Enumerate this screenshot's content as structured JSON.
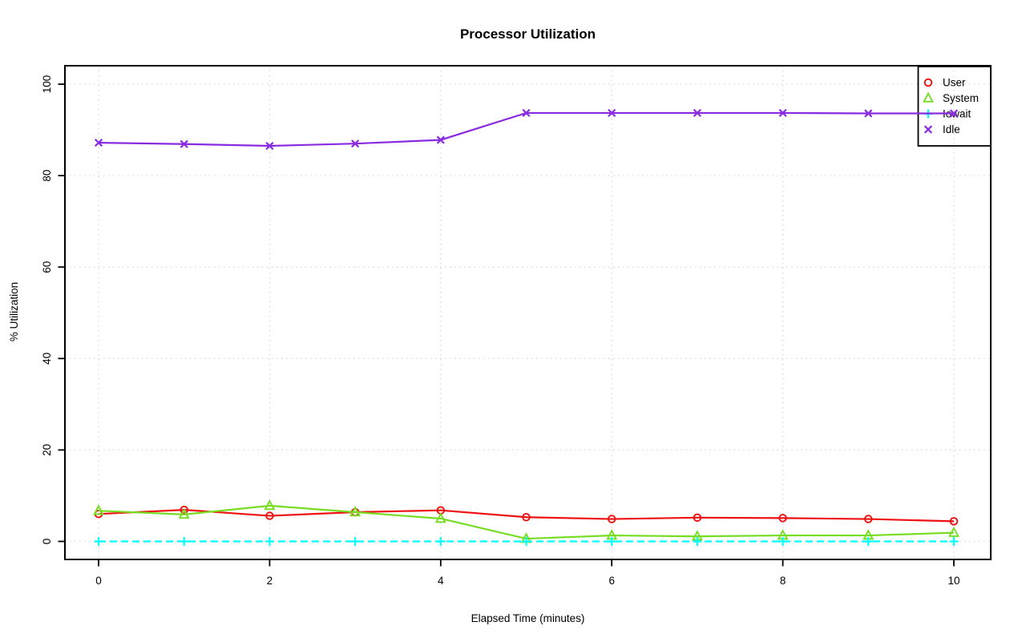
{
  "page": {
    "background": "#ffffff"
  },
  "chart_data": {
    "type": "line",
    "title": "Processor Utilization",
    "xlabel": "Elapsed Time (minutes)",
    "ylabel": "% Utilization",
    "x": [
      0,
      1,
      2,
      3,
      4,
      5,
      6,
      7,
      8,
      9,
      10
    ],
    "series": [
      {
        "name": "User",
        "color": "#EE1111",
        "marker": "circle",
        "line_style": "solid",
        "values": [
          6.0,
          6.9,
          5.6,
          6.4,
          6.8,
          5.3,
          4.9,
          5.2,
          5.1,
          4.9,
          4.4
        ]
      },
      {
        "name": "System",
        "color": "#77DD22",
        "marker": "triangle",
        "line_style": "solid",
        "values": [
          6.7,
          5.9,
          7.8,
          6.4,
          5.0,
          0.6,
          1.3,
          1.1,
          1.3,
          1.3,
          1.9
        ]
      },
      {
        "name": "Iowait",
        "color": "#00FFFF",
        "marker": "plus",
        "line_style": "dashed",
        "values": [
          0,
          0,
          0,
          0,
          0,
          0,
          0,
          0,
          0,
          0,
          0
        ]
      },
      {
        "name": "Idle",
        "color": "#8A2BE2",
        "marker": "x",
        "line_style": "solid",
        "values": [
          87.2,
          86.9,
          86.5,
          87.0,
          87.8,
          93.7,
          93.7,
          93.7,
          93.7,
          93.6,
          93.6
        ]
      }
    ],
    "xticks": [
      0,
      2,
      4,
      6,
      8,
      10
    ],
    "yticks": [
      0,
      20,
      40,
      60,
      80,
      100
    ],
    "xlim": [
      -0.4,
      10.4
    ],
    "ylim": [
      -4,
      104
    ],
    "grid": true,
    "grid_color": "#D8D8D8",
    "axis_color": "#000000",
    "legend_position": "topright"
  }
}
